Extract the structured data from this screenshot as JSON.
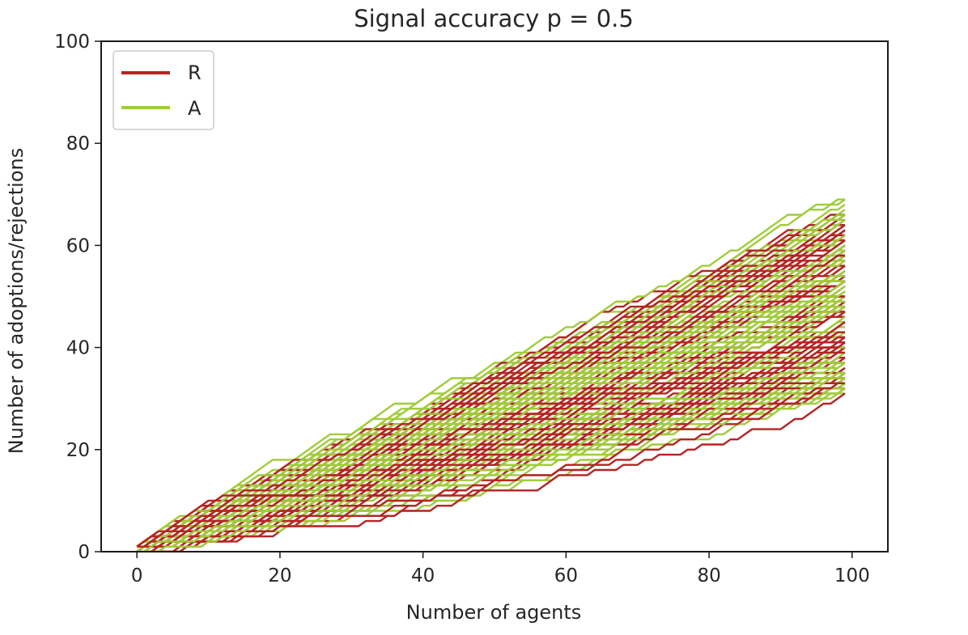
{
  "chart_data": {
    "type": "line",
    "title": "Signal accuracy p =  0.5",
    "xlabel": "Number of agents",
    "ylabel": "Number of adoptions/rejections",
    "xlim": [
      -5,
      105
    ],
    "ylim": [
      0,
      100
    ],
    "xticks": [
      0,
      20,
      40,
      60,
      80,
      100
    ],
    "yticks": [
      0,
      20,
      40,
      60,
      80,
      100
    ],
    "grid": false,
    "legend_position": "top-left",
    "trial_count": 100,
    "agents_per_trial": 100,
    "final_value_range": [
      31,
      69
    ],
    "series": [
      {
        "name": "R",
        "color": "#b52424"
      },
      {
        "name": "A",
        "color": "#a0cc3a"
      }
    ]
  }
}
